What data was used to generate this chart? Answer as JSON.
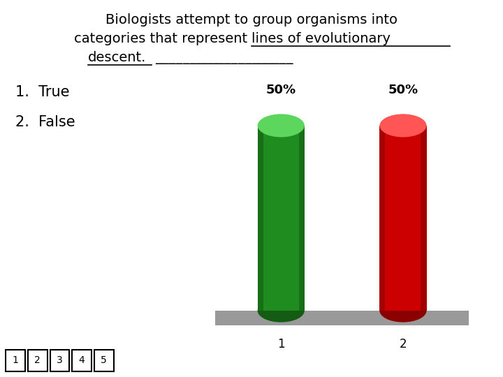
{
  "title_line1": "Biologists attempt to group organisms into",
  "title_line2_plain": "categories that represent ",
  "title_line2_underlined": "lines of evolutionary",
  "title_line3_underlined": "descent.",
  "title_line3_blank": "____________________",
  "categories": [
    "1",
    "2"
  ],
  "values": [
    50,
    50
  ],
  "labels": [
    "50%",
    "50%"
  ],
  "bar_colors_main": [
    "#1e8c1e",
    "#cc0000"
  ],
  "bar_colors_light": [
    "#5cd65c",
    "#ff5555"
  ],
  "bar_colors_dark": [
    "#145c14",
    "#8b0000"
  ],
  "list_item1": "1.  True",
  "list_item2": "2.  False",
  "footer_numbers": [
    "1",
    "2",
    "3",
    "4",
    "5"
  ],
  "background_color": "#ffffff",
  "platform_color": "#999999",
  "xlabel_1": "1",
  "xlabel_2": "2",
  "title_fontsize": 14,
  "bar_label_fontsize": 13,
  "list_fontsize": 15,
  "axis_label_fontsize": 12
}
